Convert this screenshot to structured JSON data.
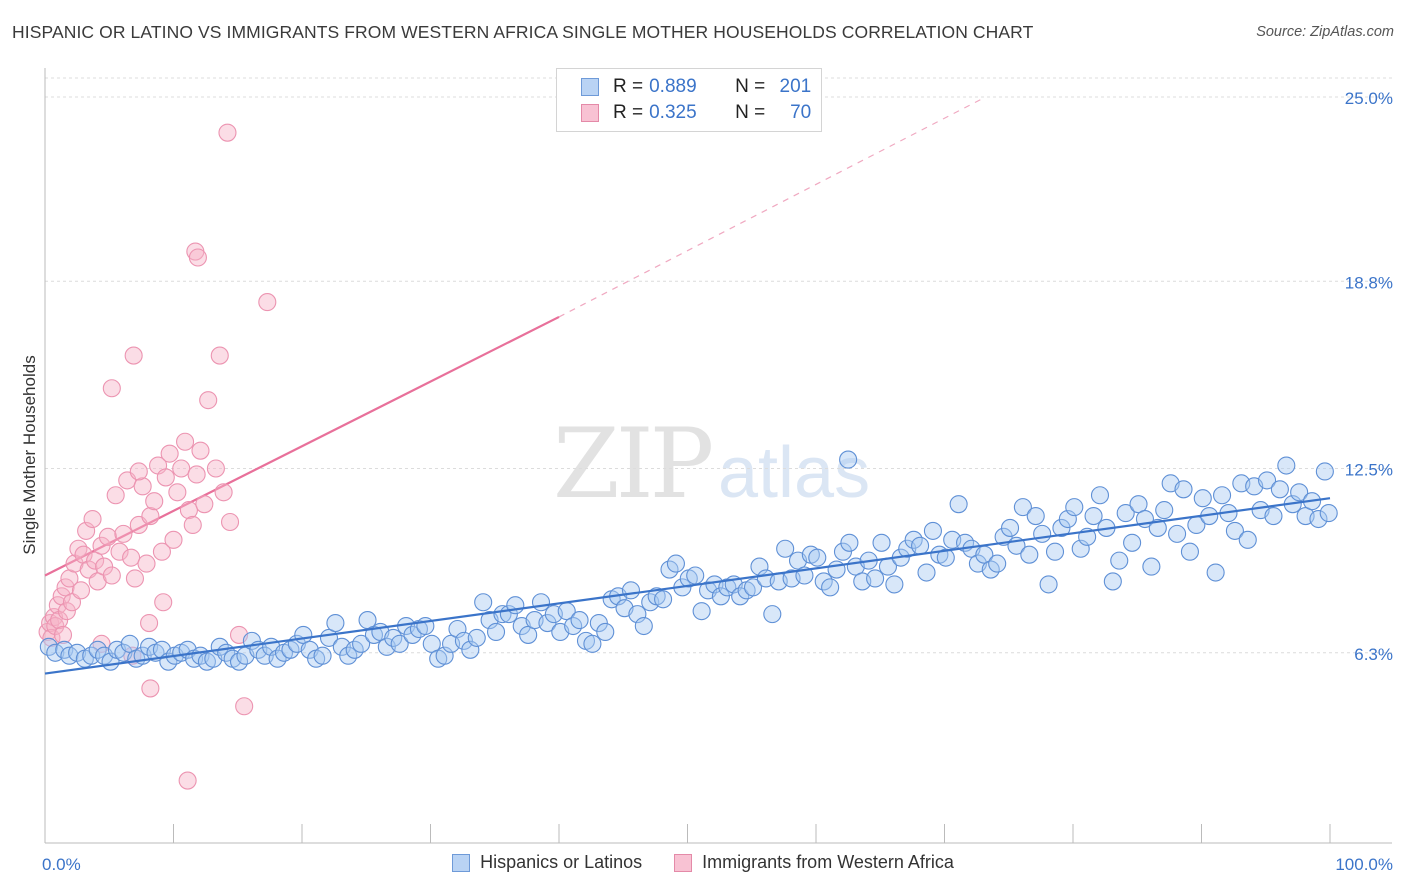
{
  "title": "HISPANIC OR LATINO VS IMMIGRANTS FROM WESTERN AFRICA SINGLE MOTHER HOUSEHOLDS CORRELATION CHART",
  "source": "Source: ZipAtlas.com",
  "watermark": {
    "zip": "ZIP",
    "atlas": "atlas"
  },
  "legend": {
    "series1": {
      "r_label": "R = ",
      "r_value": "0.889",
      "n_label": "N = ",
      "n_value": "201"
    },
    "series2": {
      "r_label": "R = ",
      "r_value": "0.325",
      "n_label": "N = ",
      "n_value": "70"
    }
  },
  "chart_data": {
    "type": "scatter",
    "title": "HISPANIC OR LATINO VS IMMIGRANTS FROM WESTERN AFRICA SINGLE MOTHER HOUSEHOLDS CORRELATION CHART",
    "xlabel": "",
    "ylabel": "Single Mother Households",
    "xlim": [
      0,
      100
    ],
    "ylim": [
      0,
      26
    ],
    "x_tick_labels": [
      "0.0%",
      "100.0%"
    ],
    "y_ticks": [
      6.3,
      12.5,
      18.8,
      25.0
    ],
    "y_tick_labels": [
      "6.3%",
      "12.5%",
      "18.8%",
      "25.0%"
    ],
    "colors": {
      "blue": "#3b74c9",
      "blue_fill": "#a9c9f1",
      "pink": "#e8709a",
      "pink_fill": "#f6b3c8"
    },
    "series": [
      {
        "name": "Hispanics or Latinos",
        "color": "#3b74c9",
        "trend": {
          "x0": 0,
          "y0": 5.6,
          "x1": 100,
          "y1": 11.5
        },
        "points": [
          [
            0.3,
            6.5
          ],
          [
            0.8,
            6.3
          ],
          [
            1.5,
            6.4
          ],
          [
            1.9,
            6.2
          ],
          [
            2.5,
            6.3
          ],
          [
            3.1,
            6.1
          ],
          [
            3.6,
            6.2
          ],
          [
            4.1,
            6.4
          ],
          [
            4.6,
            6.2
          ],
          [
            5.1,
            6.0
          ],
          [
            5.6,
            6.4
          ],
          [
            6.1,
            6.3
          ],
          [
            6.6,
            6.6
          ],
          [
            7.1,
            6.1
          ],
          [
            7.6,
            6.2
          ],
          [
            8.1,
            6.5
          ],
          [
            8.6,
            6.3
          ],
          [
            9.1,
            6.4
          ],
          [
            9.6,
            6.0
          ],
          [
            10.1,
            6.2
          ],
          [
            10.6,
            6.3
          ],
          [
            11.1,
            6.4
          ],
          [
            11.6,
            6.1
          ],
          [
            12.1,
            6.2
          ],
          [
            12.6,
            6.0
          ],
          [
            13.1,
            6.1
          ],
          [
            13.6,
            6.5
          ],
          [
            14.1,
            6.3
          ],
          [
            14.6,
            6.1
          ],
          [
            15.1,
            6.0
          ],
          [
            15.6,
            6.2
          ],
          [
            16.1,
            6.7
          ],
          [
            16.6,
            6.4
          ],
          [
            17.1,
            6.2
          ],
          [
            17.6,
            6.5
          ],
          [
            18.1,
            6.1
          ],
          [
            18.6,
            6.3
          ],
          [
            19.1,
            6.4
          ],
          [
            19.6,
            6.6
          ],
          [
            20.1,
            6.9
          ],
          [
            20.6,
            6.4
          ],
          [
            21.1,
            6.1
          ],
          [
            21.6,
            6.2
          ],
          [
            22.1,
            6.8
          ],
          [
            22.6,
            7.3
          ],
          [
            23.1,
            6.5
          ],
          [
            23.6,
            6.2
          ],
          [
            24.1,
            6.4
          ],
          [
            24.6,
            6.6
          ],
          [
            25.1,
            7.4
          ],
          [
            25.6,
            6.9
          ],
          [
            26.1,
            7.0
          ],
          [
            26.6,
            6.5
          ],
          [
            27.1,
            6.8
          ],
          [
            27.6,
            6.6
          ],
          [
            28.1,
            7.2
          ],
          [
            28.6,
            6.9
          ],
          [
            29.1,
            7.1
          ],
          [
            29.6,
            7.2
          ],
          [
            30.1,
            6.6
          ],
          [
            30.6,
            6.1
          ],
          [
            31.1,
            6.2
          ],
          [
            31.6,
            6.6
          ],
          [
            32.1,
            7.1
          ],
          [
            32.6,
            6.7
          ],
          [
            33.1,
            6.4
          ],
          [
            33.6,
            6.8
          ],
          [
            34.1,
            8.0
          ],
          [
            34.6,
            7.4
          ],
          [
            35.1,
            7.0
          ],
          [
            35.6,
            7.6
          ],
          [
            36.1,
            7.6
          ],
          [
            36.6,
            7.9
          ],
          [
            37.1,
            7.2
          ],
          [
            37.6,
            6.9
          ],
          [
            38.1,
            7.4
          ],
          [
            38.6,
            8.0
          ],
          [
            39.1,
            7.3
          ],
          [
            39.6,
            7.6
          ],
          [
            40.1,
            7.0
          ],
          [
            40.6,
            7.7
          ],
          [
            41.1,
            7.2
          ],
          [
            41.6,
            7.4
          ],
          [
            42.1,
            6.7
          ],
          [
            42.6,
            6.6
          ],
          [
            43.1,
            7.3
          ],
          [
            43.6,
            7.0
          ],
          [
            44.1,
            8.1
          ],
          [
            44.6,
            8.2
          ],
          [
            45.1,
            7.8
          ],
          [
            45.6,
            8.4
          ],
          [
            46.1,
            7.6
          ],
          [
            46.6,
            7.2
          ],
          [
            47.1,
            8.0
          ],
          [
            47.6,
            8.2
          ],
          [
            48.1,
            8.1
          ],
          [
            48.6,
            9.1
          ],
          [
            49.1,
            9.3
          ],
          [
            49.6,
            8.5
          ],
          [
            50.1,
            8.8
          ],
          [
            50.6,
            8.9
          ],
          [
            51.1,
            7.7
          ],
          [
            51.6,
            8.4
          ],
          [
            52.1,
            8.6
          ],
          [
            52.6,
            8.2
          ],
          [
            53.1,
            8.5
          ],
          [
            53.6,
            8.6
          ],
          [
            54.1,
            8.2
          ],
          [
            54.6,
            8.4
          ],
          [
            55.1,
            8.5
          ],
          [
            55.6,
            9.2
          ],
          [
            56.1,
            8.8
          ],
          [
            56.6,
            7.6
          ],
          [
            57.1,
            8.7
          ],
          [
            57.6,
            9.8
          ],
          [
            58.1,
            8.8
          ],
          [
            58.6,
            9.4
          ],
          [
            59.1,
            8.9
          ],
          [
            59.6,
            9.6
          ],
          [
            60.1,
            9.5
          ],
          [
            60.6,
            8.7
          ],
          [
            61.1,
            8.5
          ],
          [
            61.6,
            9.1
          ],
          [
            62.1,
            9.7
          ],
          [
            62.6,
            10.0
          ],
          [
            63.1,
            9.2
          ],
          [
            63.6,
            8.7
          ],
          [
            64.1,
            9.4
          ],
          [
            64.6,
            8.8
          ],
          [
            65.1,
            10.0
          ],
          [
            65.6,
            9.2
          ],
          [
            66.1,
            8.6
          ],
          [
            66.6,
            9.5
          ],
          [
            67.1,
            9.8
          ],
          [
            67.6,
            10.1
          ],
          [
            68.1,
            9.9
          ],
          [
            68.6,
            9.0
          ],
          [
            69.1,
            10.4
          ],
          [
            69.6,
            9.6
          ],
          [
            70.1,
            9.5
          ],
          [
            70.6,
            10.1
          ],
          [
            71.1,
            11.3
          ],
          [
            71.6,
            10.0
          ],
          [
            72.1,
            9.8
          ],
          [
            72.6,
            9.3
          ],
          [
            73.1,
            9.6
          ],
          [
            73.6,
            9.1
          ],
          [
            74.1,
            9.3
          ],
          [
            74.6,
            10.2
          ],
          [
            75.1,
            10.5
          ],
          [
            75.6,
            9.9
          ],
          [
            76.1,
            11.2
          ],
          [
            76.6,
            9.6
          ],
          [
            77.1,
            10.9
          ],
          [
            77.6,
            10.3
          ],
          [
            78.1,
            8.6
          ],
          [
            78.6,
            9.7
          ],
          [
            79.1,
            10.5
          ],
          [
            79.6,
            10.8
          ],
          [
            80.1,
            11.2
          ],
          [
            80.6,
            9.8
          ],
          [
            81.1,
            10.2
          ],
          [
            81.6,
            10.9
          ],
          [
            82.1,
            11.6
          ],
          [
            82.6,
            10.5
          ],
          [
            83.1,
            8.7
          ],
          [
            83.6,
            9.4
          ],
          [
            84.1,
            11.0
          ],
          [
            84.6,
            10.0
          ],
          [
            85.1,
            11.3
          ],
          [
            85.6,
            10.8
          ],
          [
            86.1,
            9.2
          ],
          [
            86.6,
            10.5
          ],
          [
            87.1,
            11.1
          ],
          [
            87.6,
            12.0
          ],
          [
            88.1,
            10.3
          ],
          [
            88.6,
            11.8
          ],
          [
            89.1,
            9.7
          ],
          [
            89.6,
            10.6
          ],
          [
            90.1,
            11.5
          ],
          [
            90.6,
            10.9
          ],
          [
            91.1,
            9.0
          ],
          [
            91.6,
            11.6
          ],
          [
            92.1,
            11.0
          ],
          [
            92.6,
            10.4
          ],
          [
            93.1,
            12.0
          ],
          [
            93.6,
            10.1
          ],
          [
            94.1,
            11.9
          ],
          [
            94.6,
            11.1
          ],
          [
            95.1,
            12.1
          ],
          [
            95.6,
            10.9
          ],
          [
            96.1,
            11.8
          ],
          [
            96.6,
            12.6
          ],
          [
            97.1,
            11.3
          ],
          [
            97.6,
            11.7
          ],
          [
            98.1,
            10.9
          ],
          [
            98.6,
            11.4
          ],
          [
            99.1,
            10.8
          ],
          [
            99.6,
            12.4
          ],
          [
            99.9,
            11.0
          ],
          [
            62.5,
            12.8
          ]
        ]
      },
      {
        "name": "Immigrants from Western Africa",
        "color": "#e8709a",
        "trend": {
          "x0": 0,
          "y0": 8.9,
          "x1": 40,
          "y1": 17.6,
          "dash_to_x": 73.2,
          "dash_to_y": 25.0
        },
        "points": [
          [
            0.2,
            7.0
          ],
          [
            0.4,
            7.3
          ],
          [
            0.5,
            6.8
          ],
          [
            0.7,
            7.5
          ],
          [
            0.8,
            7.2
          ],
          [
            1.0,
            7.9
          ],
          [
            1.1,
            7.4
          ],
          [
            1.3,
            8.2
          ],
          [
            1.4,
            6.9
          ],
          [
            1.6,
            8.5
          ],
          [
            1.7,
            7.7
          ],
          [
            1.9,
            8.8
          ],
          [
            2.1,
            8.0
          ],
          [
            2.3,
            9.3
          ],
          [
            2.6,
            9.8
          ],
          [
            2.8,
            8.4
          ],
          [
            3.0,
            9.6
          ],
          [
            3.2,
            10.4
          ],
          [
            3.4,
            9.1
          ],
          [
            3.7,
            10.8
          ],
          [
            3.9,
            9.4
          ],
          [
            4.1,
            8.7
          ],
          [
            4.4,
            9.9
          ],
          [
            4.6,
            9.2
          ],
          [
            4.9,
            10.2
          ],
          [
            5.2,
            8.9
          ],
          [
            5.5,
            11.6
          ],
          [
            5.8,
            9.7
          ],
          [
            6.1,
            10.3
          ],
          [
            6.4,
            12.1
          ],
          [
            6.7,
            9.5
          ],
          [
            7.0,
            8.8
          ],
          [
            7.3,
            10.6
          ],
          [
            7.6,
            11.9
          ],
          [
            7.9,
            9.3
          ],
          [
            8.2,
            10.9
          ],
          [
            8.5,
            11.4
          ],
          [
            8.8,
            12.6
          ],
          [
            9.1,
            9.7
          ],
          [
            9.4,
            12.2
          ],
          [
            9.7,
            13.0
          ],
          [
            10.0,
            10.1
          ],
          [
            10.3,
            11.7
          ],
          [
            10.6,
            12.5
          ],
          [
            10.9,
            13.4
          ],
          [
            11.2,
            11.1
          ],
          [
            11.5,
            10.6
          ],
          [
            11.8,
            12.3
          ],
          [
            12.1,
            13.1
          ],
          [
            12.4,
            11.3
          ],
          [
            6.9,
            16.3
          ],
          [
            8.1,
            7.3
          ],
          [
            9.2,
            8.0
          ],
          [
            11.7,
            19.8
          ],
          [
            11.9,
            19.6
          ],
          [
            12.7,
            14.8
          ],
          [
            13.3,
            12.5
          ],
          [
            13.9,
            11.7
          ],
          [
            14.4,
            10.7
          ],
          [
            7.3,
            12.4
          ],
          [
            5.2,
            15.2
          ],
          [
            13.6,
            16.3
          ],
          [
            14.2,
            23.8
          ],
          [
            15.1,
            6.9
          ],
          [
            15.5,
            4.5
          ],
          [
            17.3,
            18.1
          ],
          [
            8.2,
            5.1
          ],
          [
            11.1,
            2.0
          ],
          [
            4.4,
            6.6
          ],
          [
            6.8,
            6.2
          ]
        ]
      }
    ]
  }
}
